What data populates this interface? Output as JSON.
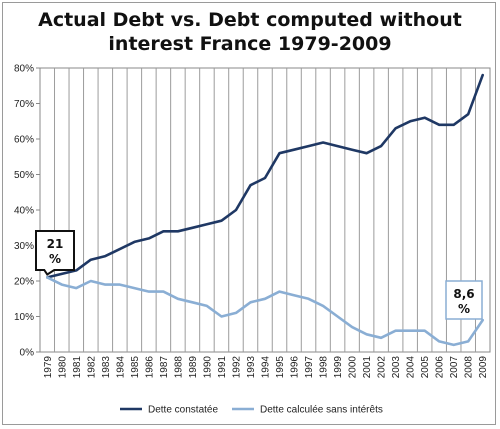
{
  "chart_data": {
    "type": "line",
    "title_lines": [
      "Actual Debt vs. Debt computed without",
      "interest  France 1979-2009"
    ],
    "x": [
      1979,
      1980,
      1981,
      1982,
      1983,
      1984,
      1985,
      1986,
      1987,
      1988,
      1989,
      1990,
      1991,
      1992,
      1993,
      1994,
      1995,
      1996,
      1997,
      1998,
      1999,
      2000,
      2001,
      2002,
      2003,
      2004,
      2005,
      2006,
      2007,
      2008,
      2009
    ],
    "x_tick_labels": [
      "1979",
      "1980",
      "1981",
      "1982",
      "1983",
      "1984",
      "1985",
      "1986",
      "1987",
      "1988",
      "1989",
      "1990",
      "1991",
      "1992",
      "1993",
      "1994",
      "1995",
      "1996",
      "1997",
      "1998",
      "1999",
      "2000",
      "2001",
      "2002",
      "2003",
      "2004",
      "2005",
      "2006",
      "2007",
      "2008",
      "2009"
    ],
    "ylim": [
      0,
      80
    ],
    "y_tick_labels": [
      "0%",
      "10%",
      "20%",
      "30%",
      "40%",
      "50%",
      "60%",
      "70%",
      "80%"
    ],
    "y_ticks": [
      0,
      10,
      20,
      30,
      40,
      50,
      60,
      70,
      80
    ],
    "grid": "vertical",
    "series": [
      {
        "name": "Dette constatée",
        "color": "#1f3864",
        "values": [
          21,
          22,
          23,
          26,
          27,
          29,
          31,
          32,
          34,
          34,
          35,
          36,
          37,
          40,
          47,
          49,
          56,
          57,
          58,
          59,
          58,
          57,
          56,
          58,
          63,
          65,
          66,
          64,
          64,
          67,
          78
        ]
      },
      {
        "name": "Dette calculée sans intérêts",
        "color": "#8aaed4",
        "values": [
          21,
          19,
          18,
          20,
          19,
          19,
          18,
          17,
          17,
          15,
          14,
          13,
          10,
          11,
          14,
          15,
          17,
          16,
          15,
          13,
          10,
          7,
          5,
          4,
          6,
          6,
          6,
          3,
          2,
          3,
          9
        ]
      }
    ],
    "legend_position": "bottom",
    "annotations": [
      {
        "line1": "21",
        "line2": "%",
        "x": 1979,
        "y": 21
      },
      {
        "line1": "8,6",
        "line2": "%",
        "x": 2009,
        "y": 8.6
      }
    ]
  }
}
